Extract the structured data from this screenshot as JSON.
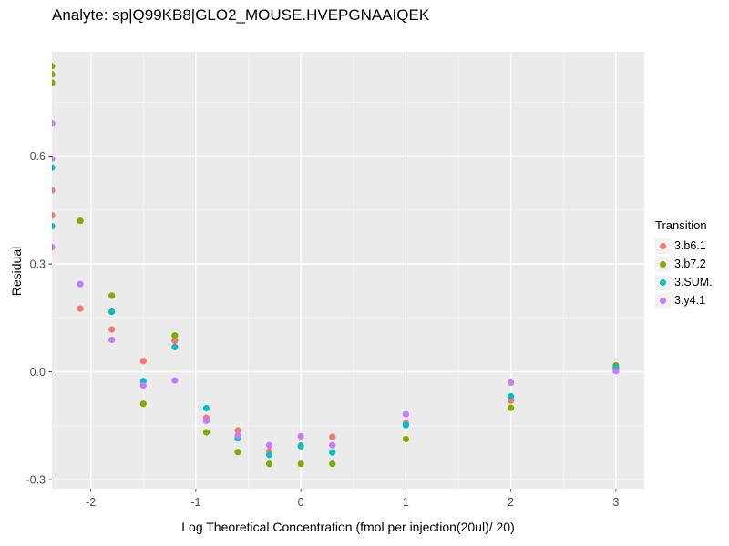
{
  "title": "Analyte: sp|Q99KB8|GLO2_MOUSE.HVEPGNAAIQEK",
  "panel": {
    "background": "#EBEBEB",
    "grid_major_color": "#FFFFFF",
    "grid_minor_color": "#FFFFFF",
    "tick_color": "#333333",
    "tick_label_color": "#4D4D4D"
  },
  "chart_data": {
    "type": "scatter",
    "title": "Analyte: sp|Q99KB8|GLO2_MOUSE.HVEPGNAAIQEK",
    "xlabel": "Log Theoretical Concentration (fmol per injection(20ul)/ 20)",
    "ylabel": "Residual",
    "legend_title": "Transition",
    "legend_position": "right",
    "grid": "major+minor white on gray panel",
    "xlim": [
      -2.37,
      3.27
    ],
    "ylim": [
      -0.325,
      0.89
    ],
    "xticks": {
      "values": [
        -2,
        -1,
        0,
        1,
        2,
        3
      ],
      "labels": [
        "-2",
        "-1",
        "0",
        "1",
        "2",
        "3"
      ],
      "minor": [
        -1.5,
        -0.5,
        0.5,
        1.5,
        2.5
      ]
    },
    "yticks": {
      "values": [
        0.6,
        0.3,
        0.0,
        -0.3
      ],
      "labels": [
        "0.6",
        "0.3",
        "0.0",
        "-0.3"
      ],
      "minor": [
        0.75,
        0.45,
        0.15,
        -0.15
      ]
    },
    "point_radius_px": 3.6,
    "series": [
      {
        "name": "3.b6.1",
        "color": "#F8766D",
        "points": [
          [
            -2.37,
            0.505
          ],
          [
            -2.37,
            0.435
          ],
          [
            -2.1,
            0.176
          ],
          [
            -1.8,
            0.118
          ],
          [
            -1.5,
            0.03
          ],
          [
            -1.2,
            0.086
          ],
          [
            -0.9,
            -0.128
          ],
          [
            -0.6,
            -0.163
          ],
          [
            -0.3,
            -0.221
          ],
          [
            0,
            -0.205
          ],
          [
            0.3,
            -0.181
          ],
          [
            1,
            -0.143
          ],
          [
            2,
            -0.08
          ],
          [
            3,
            0.005
          ]
        ]
      },
      {
        "name": "3.b7.2",
        "color": "#7CAE00",
        "points": [
          [
            -2.37,
            0.85
          ],
          [
            -2.37,
            0.827
          ],
          [
            -2.37,
            0.804
          ],
          [
            -2.1,
            0.42
          ],
          [
            -1.8,
            0.212
          ],
          [
            -1.5,
            -0.089
          ],
          [
            -1.2,
            0.101
          ],
          [
            -0.9,
            -0.168
          ],
          [
            -0.6,
            -0.223
          ],
          [
            -0.3,
            -0.256
          ],
          [
            0,
            -0.256
          ],
          [
            0.3,
            -0.256
          ],
          [
            1,
            -0.187
          ],
          [
            2,
            -0.1
          ],
          [
            3,
            0.018
          ]
        ]
      },
      {
        "name": "3.SUM.",
        "color": "#00BFC4",
        "points": [
          [
            -2.37,
            0.568
          ],
          [
            -2.37,
            0.405
          ],
          [
            -1.8,
            0.167
          ],
          [
            -1.5,
            -0.026
          ],
          [
            -1.2,
            0.069
          ],
          [
            -0.9,
            -0.101
          ],
          [
            -0.6,
            -0.185
          ],
          [
            -0.3,
            -0.231
          ],
          [
            0,
            -0.207
          ],
          [
            0.3,
            -0.224
          ],
          [
            1,
            -0.148
          ],
          [
            2,
            -0.068
          ],
          [
            3,
            0.012
          ]
        ]
      },
      {
        "name": "3.y4.1",
        "color": "#C77CFF",
        "points": [
          [
            -2.37,
            0.691
          ],
          [
            -2.37,
            0.593
          ],
          [
            -2.37,
            0.347
          ],
          [
            -2.1,
            0.244
          ],
          [
            -1.8,
            0.089
          ],
          [
            -1.5,
            -0.038
          ],
          [
            -1.2,
            -0.024
          ],
          [
            -0.9,
            -0.136
          ],
          [
            -0.6,
            -0.177
          ],
          [
            -0.3,
            -0.204
          ],
          [
            0,
            -0.179
          ],
          [
            0.3,
            -0.204
          ],
          [
            1,
            -0.118
          ],
          [
            2,
            -0.03
          ],
          [
            3,
            0.002
          ]
        ]
      }
    ]
  }
}
